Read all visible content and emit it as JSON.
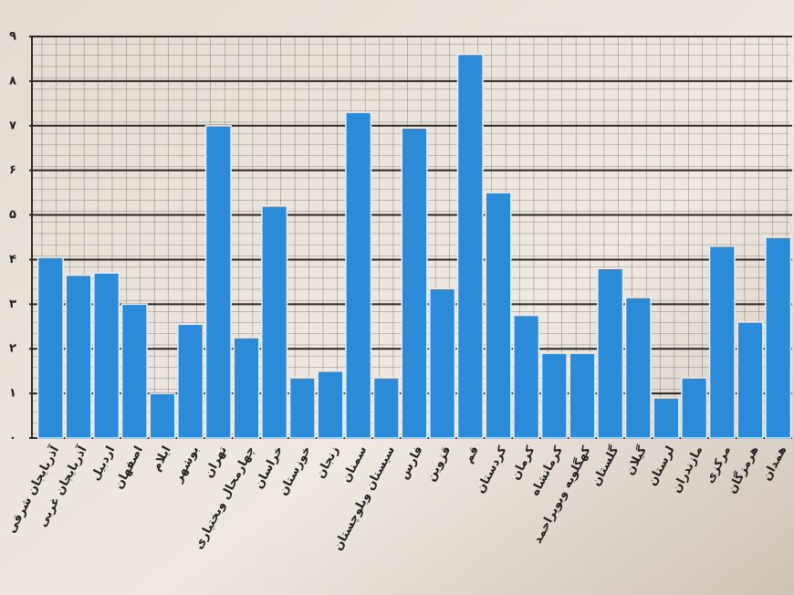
{
  "chart_data": {
    "type": "bar",
    "categories": [
      "آذربایجان شرقی",
      "آذربایجان غربی",
      "اردبیل",
      "اصفهان",
      "ایلام",
      "بوشهر",
      "تهران",
      "چهارمحال وبختیاری",
      "خراسان",
      "خوزستان",
      "زنجان",
      "سمنان",
      "سیستان وبلوچستان",
      "فارس",
      "قزوین",
      "قم",
      "کردستان",
      "کرمان",
      "کرمانشاه",
      "کهگلویه وبویراحمد",
      "گلستان",
      "گیلان",
      "لرستان",
      "مازندران",
      "مرکزی",
      "هرمزگان",
      "همدان"
    ],
    "values": [
      4.05,
      3.65,
      3.7,
      3.0,
      1.0,
      2.55,
      7.0,
      2.25,
      5.2,
      1.35,
      1.5,
      7.3,
      1.35,
      6.95,
      3.35,
      8.6,
      5.5,
      2.75,
      1.9,
      1.9,
      3.8,
      3.15,
      0.9,
      1.35,
      4.3,
      2.6,
      4.5
    ],
    "color": "#2b8bd9",
    "ylim": [
      0,
      9
    ],
    "yticks": [
      {
        "value": 0,
        "label": "۰"
      },
      {
        "value": 1,
        "label": "۱"
      },
      {
        "value": 2,
        "label": "۲"
      },
      {
        "value": 3,
        "label": "۳"
      },
      {
        "value": 4,
        "label": "۴"
      },
      {
        "value": 5,
        "label": "۵"
      },
      {
        "value": 6,
        "label": "۶"
      },
      {
        "value": 7,
        "label": "۷"
      },
      {
        "value": 8,
        "label": "۸"
      },
      {
        "value": 9,
        "label": "۹"
      }
    ],
    "grid": true
  }
}
